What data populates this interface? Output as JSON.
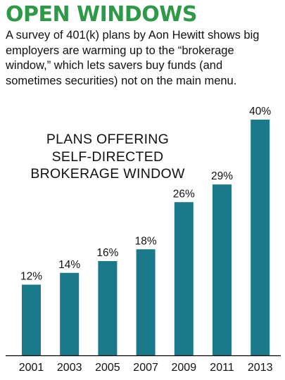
{
  "headline": "OPEN WINDOWS",
  "deck": "A survey of 401(k) plans by Aon Hewitt shows big employers are warming up to the “brokerage window,” which lets savers buy funds (and sometimes securities) not on the main menu.",
  "colors": {
    "headline": "#2e9a48",
    "bar": "#1a7a8c",
    "text": "#111111",
    "axis": "#000000"
  },
  "chart_data": {
    "type": "bar",
    "title_lines": [
      "PLANS OFFERING",
      "SELF-DIRECTED",
      "BROKERAGE WINDOW"
    ],
    "categories": [
      "2001",
      "2003",
      "2005",
      "2007",
      "2009",
      "2011",
      "2013"
    ],
    "values": [
      12,
      14,
      16,
      18,
      26,
      29,
      40
    ],
    "value_labels": [
      "12%",
      "14%",
      "16%",
      "18%",
      "26%",
      "29%",
      "40%"
    ],
    "ylim": [
      0,
      40
    ],
    "grid": false
  }
}
